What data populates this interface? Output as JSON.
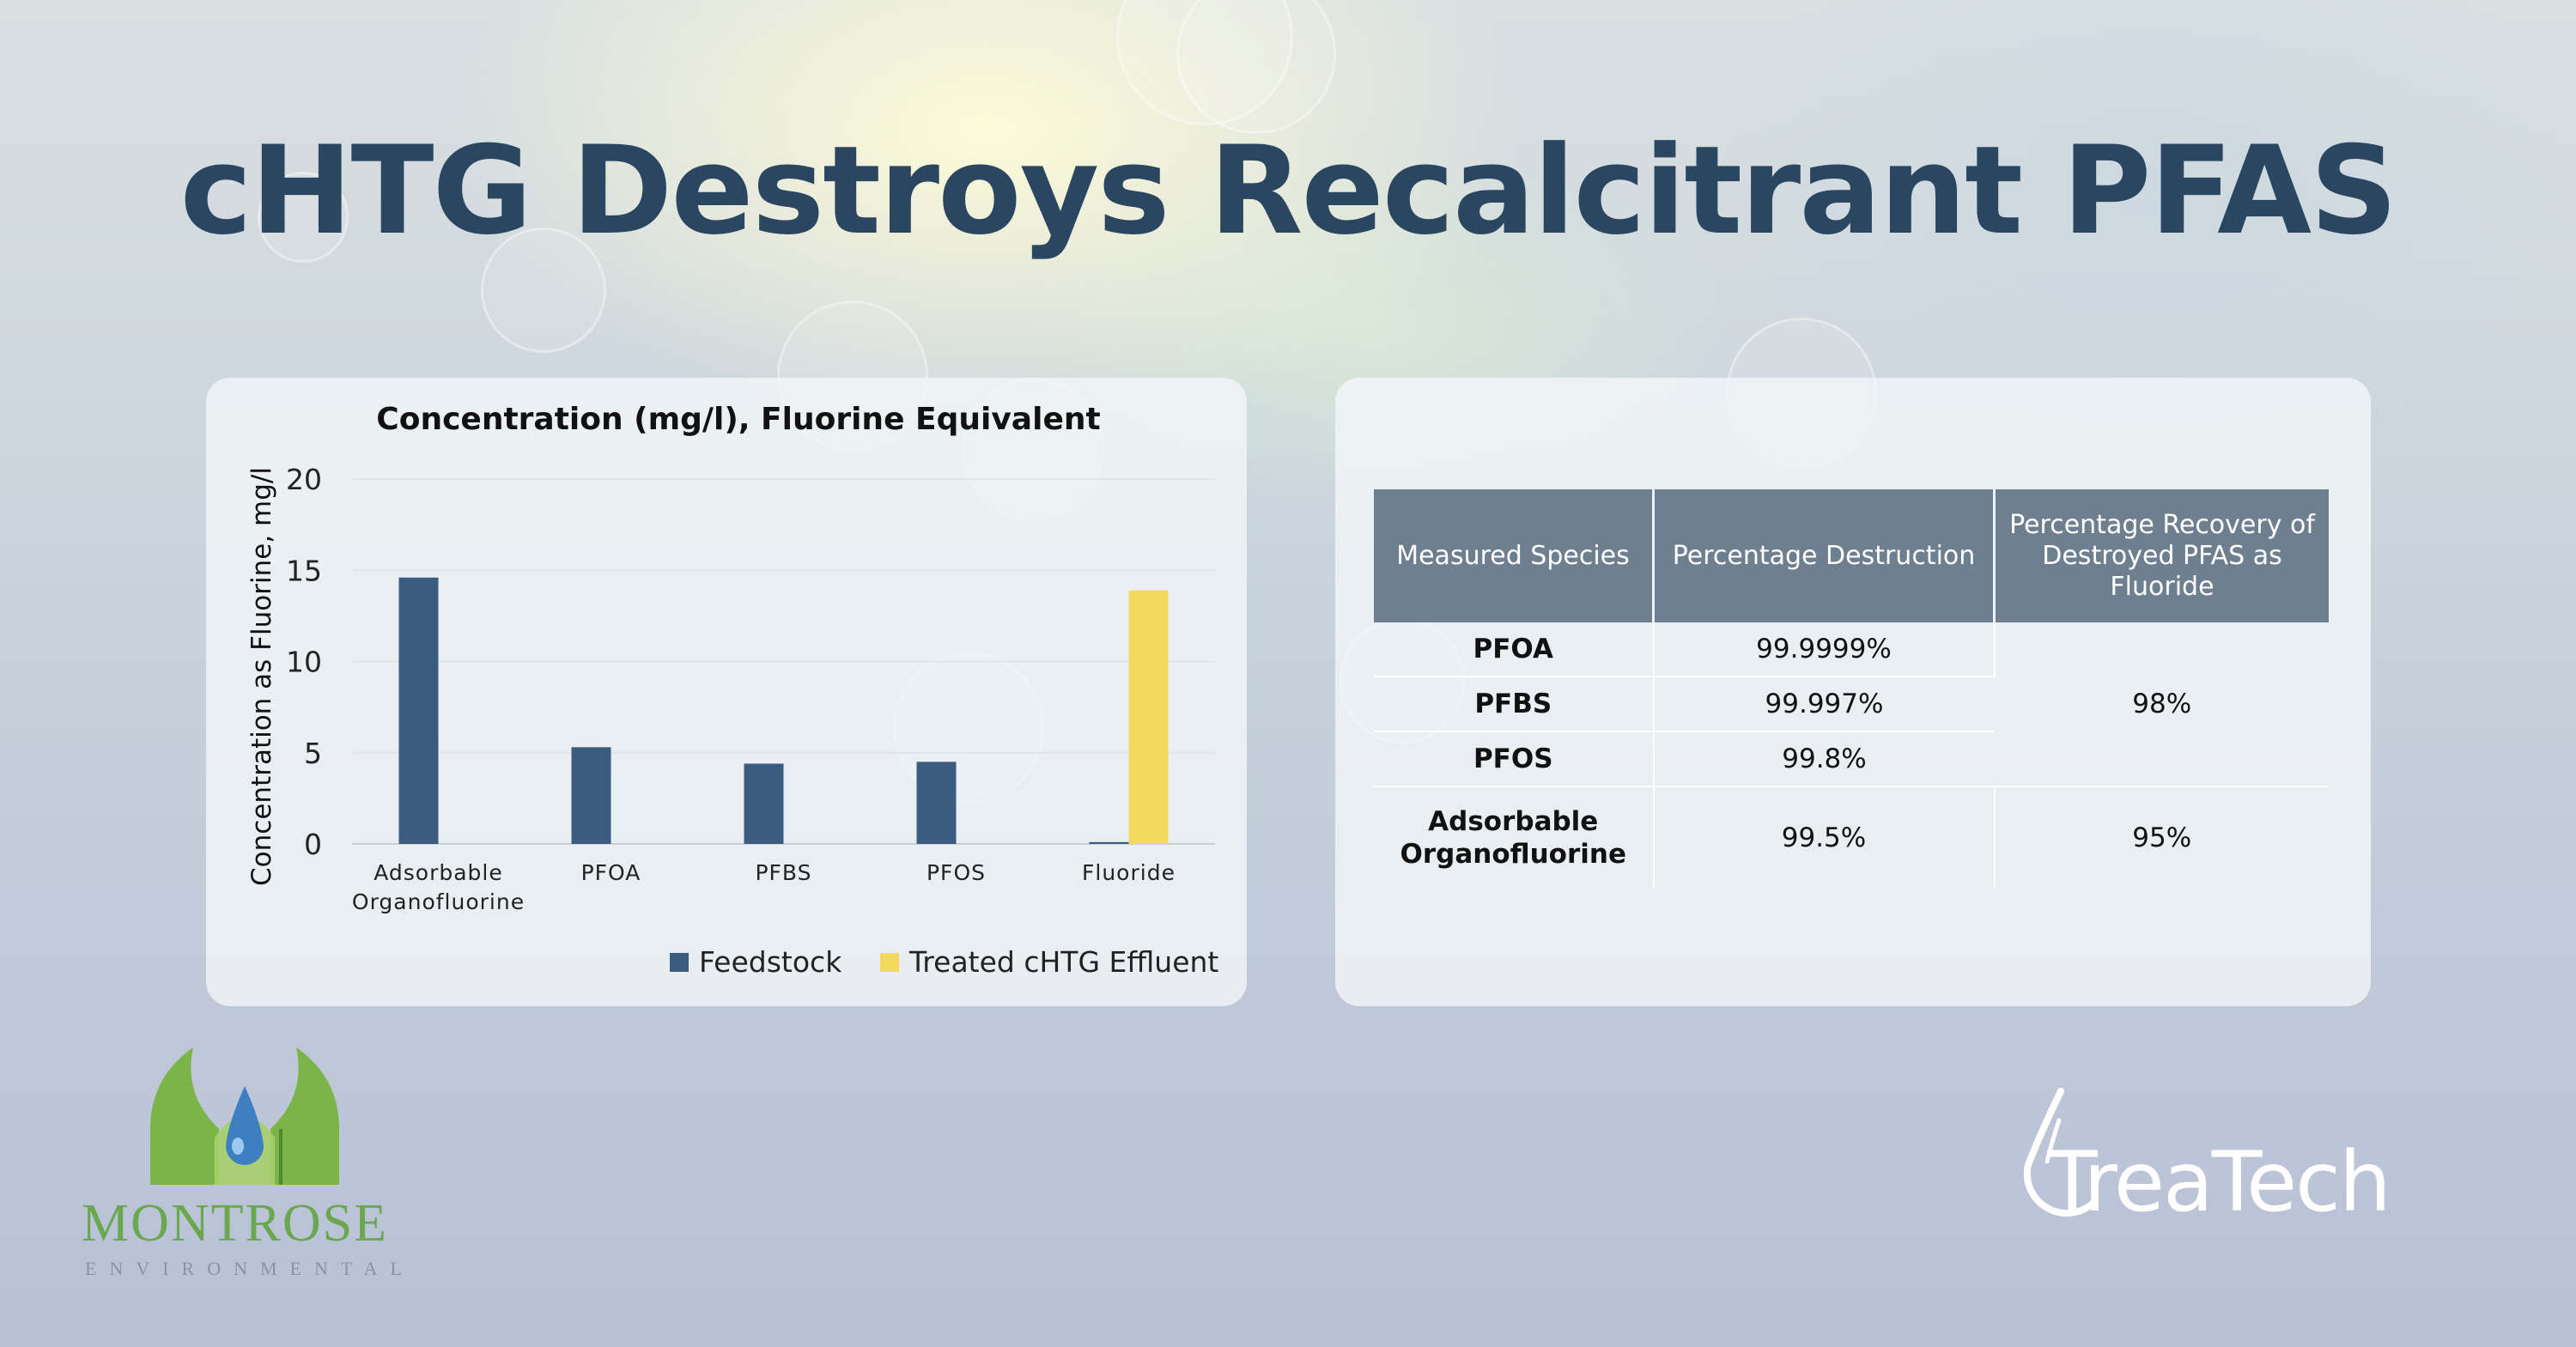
{
  "title": "cHTG Destroys Recalcitrant PFAS",
  "chart_data": {
    "type": "bar",
    "title": "Concentration (mg/l), Fluorine Equivalent",
    "ylabel": "Concentration as Fluorine, mg/l",
    "xlabel": "",
    "ylim": [
      0,
      20
    ],
    "yticks": [
      0,
      5,
      10,
      15,
      20
    ],
    "categories": [
      [
        "Adsorbable",
        "Organofluorine"
      ],
      [
        "PFOA"
      ],
      [
        "PFBS"
      ],
      [
        "PFOS"
      ],
      [
        "Fluoride"
      ]
    ],
    "series": [
      {
        "name": "Feedstock",
        "color": "#3a5c7e",
        "values": [
          14.6,
          5.3,
          4.4,
          4.5,
          0.1
        ]
      },
      {
        "name": "Treated cHTG Effluent",
        "color": "#f2da5e",
        "values": [
          0,
          0,
          0,
          0,
          13.9
        ]
      }
    ],
    "grid": true,
    "legend": "bottom"
  },
  "table": {
    "headers": [
      "Measured Species",
      "Percentage Destruction",
      [
        "Percentage Recovery of",
        "Destroyed PFAS as",
        "Fluoride"
      ]
    ],
    "rows": [
      {
        "species": "PFOA",
        "destruction": "99.9999%"
      },
      {
        "species": "PFBS",
        "destruction": "99.997%"
      },
      {
        "species": "PFOS",
        "destruction": "99.8%"
      },
      {
        "species": [
          "Adsorbable",
          "Organofluorine"
        ],
        "destruction": "99.5%",
        "recovery": "95%"
      }
    ],
    "group_recovery": "98%"
  },
  "logos": {
    "montrose": {
      "name": "MONTROSE",
      "sub": "ENVIRONMENTAL",
      "green": "#6aa84f",
      "blue": "#3d7fc1"
    },
    "treatech": {
      "name": "TreaTech",
      "color": "#ffffff"
    }
  }
}
